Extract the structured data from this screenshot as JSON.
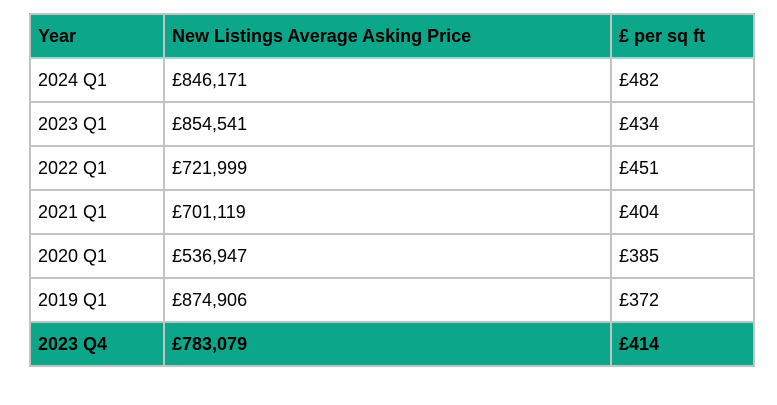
{
  "chart_data": {
    "type": "table",
    "columns": [
      "Year",
      "New Listings Average Asking Price",
      "£ per sq ft"
    ],
    "rows": [
      [
        "2024 Q1",
        "£846,171",
        "£482"
      ],
      [
        "2023 Q1",
        "£854,541",
        "£434"
      ],
      [
        "2022 Q1",
        "£721,999",
        "£451"
      ],
      [
        "2021 Q1",
        "£701,119",
        "£404"
      ],
      [
        "2020 Q1",
        "£536,947",
        "£385"
      ],
      [
        "2019 Q1",
        "£874,906",
        "£372"
      ]
    ],
    "footer_row": [
      "2023 Q4",
      "£783,079",
      "£414"
    ],
    "colors": {
      "header_bg": "#0ca78a",
      "footer_bg": "#0ca78a",
      "row_bg": "#ffffff",
      "border": "#c3c3c3",
      "text": "#000000"
    }
  }
}
